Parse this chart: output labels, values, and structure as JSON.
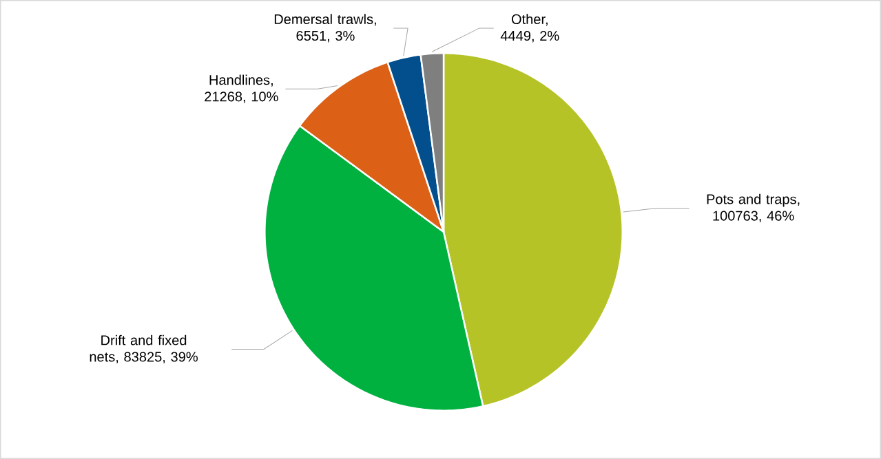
{
  "chart_data": {
    "type": "pie",
    "categories": [
      null,
      null,
      null,
      null,
      null
    ],
    "values": [
      100763,
      83825,
      21268,
      6551,
      4449
    ],
    "value_labels": [
      "Pots and traps, 100763, 46%",
      "Drift and fixed nets, 83825, 39%",
      "Handlines, 21268, 10%",
      "Demersal trawls, 6551, 3%",
      "Other, 4449, 2%"
    ],
    "colors": [
      "#b5c326",
      "#00b140",
      "#dc6016",
      "#034e8c",
      "#7f7f7f"
    ]
  }
}
